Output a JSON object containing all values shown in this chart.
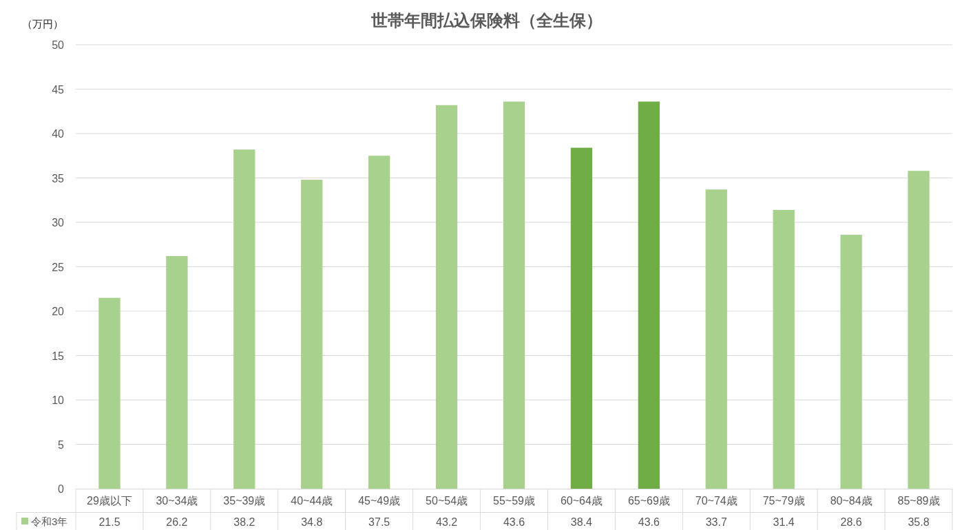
{
  "chart_data": {
    "type": "bar",
    "title": "世帯年間払込保険料（全生保）",
    "ylabel": "（万円）",
    "categories": [
      "29歳以下",
      "30~34歳",
      "35~39歳",
      "40~44歳",
      "45~49歳",
      "50~54歳",
      "55~59歳",
      "60~64歳",
      "65~69歳",
      "70~74歳",
      "75~79歳",
      "80~84歳",
      "85~89歳"
    ],
    "series": [
      {
        "name": "令和3年",
        "color": "#a9d18e",
        "colors": [
          "#a9d18e",
          "#a9d18e",
          "#a9d18e",
          "#a9d18e",
          "#a9d18e",
          "#a9d18e",
          "#a9d18e",
          "#70ad47",
          "#70ad47",
          "#a9d18e",
          "#a9d18e",
          "#a9d18e",
          "#a9d18e"
        ],
        "values": [
          21.5,
          26.2,
          38.2,
          34.8,
          37.5,
          43.2,
          43.6,
          38.4,
          43.6,
          33.7,
          31.4,
          28.6,
          35.8
        ]
      }
    ],
    "ylim": [
      0,
      50
    ],
    "yticks": [
      0,
      5,
      10,
      15,
      20,
      25,
      30,
      35,
      40,
      45,
      50
    ],
    "grid": "y",
    "legend": "bottom",
    "data_labels": true
  }
}
